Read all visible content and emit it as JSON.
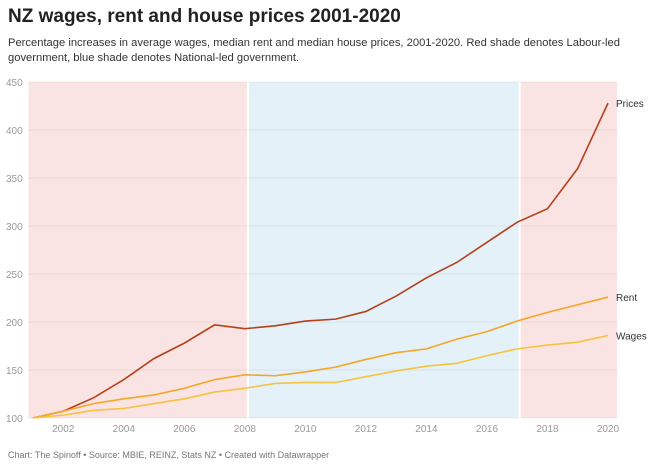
{
  "title": "NZ wages, rent and house prices 2001-2020",
  "subtitle": "Percentage increases in average wages, median rent and median house prices, 2001-2020. Red shade denotes Labour-led government, blue shade denotes National-led government.",
  "footer": "Chart: The Spinoff • Source: MBIE, REINZ, Stats NZ • Created with Datawrapper",
  "chart_data": {
    "type": "line",
    "x": [
      2001,
      2002,
      2003,
      2004,
      2005,
      2006,
      2007,
      2008,
      2009,
      2010,
      2011,
      2012,
      2013,
      2014,
      2015,
      2016,
      2017,
      2018,
      2019,
      2020
    ],
    "series": [
      {
        "name": "Prices",
        "color": "#b5401a",
        "values": [
          100,
          107,
          121,
          140,
          162,
          178,
          197,
          193,
          196,
          201,
          203,
          211,
          227,
          246,
          262,
          283,
          304,
          318,
          360,
          428
        ]
      },
      {
        "name": "Rent",
        "color": "#f5a623",
        "values": [
          100,
          107,
          115,
          120,
          124,
          131,
          140,
          145,
          144,
          148,
          153,
          161,
          168,
          172,
          182,
          190,
          201,
          210,
          218,
          226
        ]
      },
      {
        "name": "Wages",
        "color": "#f7c23e",
        "values": [
          100,
          103,
          108,
          110,
          115,
          120,
          127,
          131,
          136,
          137,
          137,
          143,
          149,
          154,
          157,
          165,
          172,
          176,
          179,
          186
        ]
      }
    ],
    "ylim": [
      100,
      450
    ],
    "yticks": [
      100,
      150,
      200,
      250,
      300,
      350,
      400,
      450
    ],
    "xticks": [
      2002,
      2004,
      2006,
      2008,
      2010,
      2012,
      2014,
      2016,
      2018,
      2020
    ],
    "grid": true,
    "shading": [
      {
        "government": "Labour-led",
        "from": 2000.85,
        "to": 2008.1,
        "color": "#f9e4e3"
      },
      {
        "government": "National-led",
        "from": 2008.1,
        "to": 2017.08,
        "color": "#e4f1f8"
      },
      {
        "government": "Labour-led",
        "from": 2017.08,
        "to": 2020.3,
        "color": "#f9e4e3"
      }
    ],
    "legend": "direct labels at line ends"
  }
}
